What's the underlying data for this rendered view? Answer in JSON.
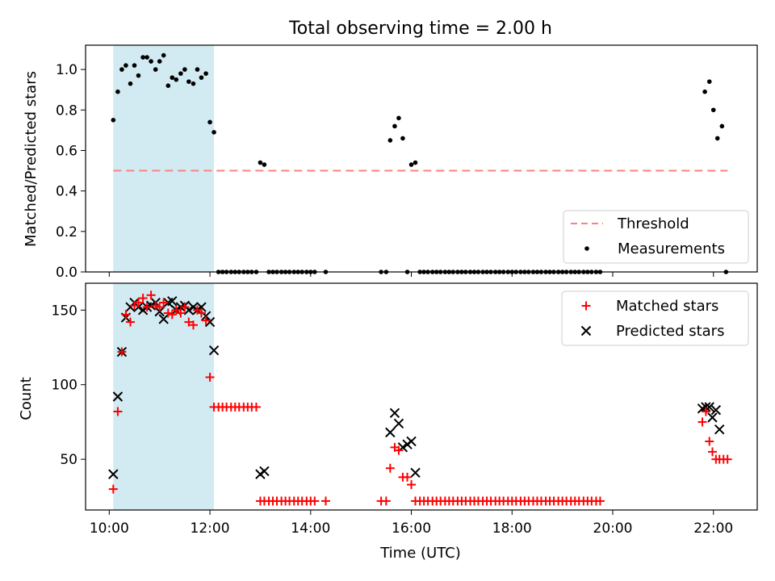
{
  "figure_title": "Total observing time = 2.00 h",
  "x_axis": {
    "label": "Time (UTC)",
    "range_hours": [
      9.53,
      22.87
    ],
    "ticks": [
      10,
      12,
      14,
      16,
      18,
      20,
      22
    ],
    "tick_labels": [
      "10:00",
      "12:00",
      "14:00",
      "16:00",
      "18:00",
      "20:00",
      "22:00"
    ]
  },
  "colors": {
    "threshold": "#ff8080",
    "measurements": "#000000",
    "matched": "#ff0000",
    "predicted": "#000000",
    "observing_window": "#add8e6"
  },
  "chart_data": [
    {
      "type": "scatter",
      "panel": "top",
      "ylabel": "Matched/Predicted stars",
      "ylim": [
        0,
        1.12
      ],
      "yticks": [
        0.0,
        0.2,
        0.4,
        0.6,
        0.8,
        1.0
      ],
      "ytick_labels": [
        "0.0",
        "0.2",
        "0.4",
        "0.6",
        "0.8",
        "1.0"
      ],
      "legend_position": "lower-right",
      "shaded_interval_hours": [
        10.08,
        12.08
      ],
      "series": [
        {
          "name": "Threshold",
          "kind": "line",
          "x": [
            10.08,
            22.28
          ],
          "y": [
            0.5,
            0.5
          ]
        },
        {
          "name": "Measurements",
          "kind": "dots",
          "x": [
            10.08,
            10.17,
            10.25,
            10.33,
            10.42,
            10.5,
            10.58,
            10.67,
            10.75,
            10.83,
            10.92,
            11.0,
            11.08,
            11.17,
            11.25,
            11.33,
            11.42,
            11.5,
            11.58,
            11.67,
            11.75,
            11.83,
            11.92,
            12.0,
            12.08,
            12.17,
            12.25,
            12.33,
            12.42,
            12.5,
            12.58,
            12.67,
            12.75,
            12.83,
            12.92,
            13.0,
            13.08,
            13.17,
            13.25,
            13.33,
            13.42,
            13.5,
            13.58,
            13.67,
            13.75,
            13.83,
            13.92,
            14.0,
            14.08,
            14.3,
            15.4,
            15.5,
            15.58,
            15.67,
            15.75,
            15.83,
            15.92,
            16.0,
            16.08,
            16.17,
            16.25,
            16.33,
            16.42,
            16.5,
            16.58,
            16.67,
            16.75,
            16.83,
            16.92,
            17.0,
            17.08,
            17.17,
            17.25,
            17.33,
            17.42,
            17.5,
            17.58,
            17.67,
            17.75,
            17.83,
            17.92,
            18.0,
            18.08,
            18.17,
            18.25,
            18.33,
            18.42,
            18.5,
            18.58,
            18.67,
            18.75,
            18.83,
            18.92,
            19.0,
            19.08,
            19.17,
            19.25,
            19.33,
            19.42,
            19.5,
            19.58,
            19.67,
            19.75,
            21.83,
            21.92,
            22.0,
            22.08,
            22.17,
            22.25
          ],
          "y": [
            0.75,
            0.89,
            1.0,
            1.02,
            0.93,
            1.02,
            0.97,
            1.06,
            1.06,
            1.04,
            1.0,
            1.04,
            1.07,
            0.92,
            0.96,
            0.95,
            0.98,
            1.0,
            0.94,
            0.93,
            1.0,
            0.96,
            0.98,
            0.74,
            0.69,
            0,
            0,
            0,
            0,
            0,
            0,
            0,
            0,
            0,
            0,
            0.54,
            0.53,
            0,
            0,
            0,
            0,
            0,
            0,
            0,
            0,
            0,
            0,
            0,
            0,
            0,
            0,
            0,
            0.65,
            0.72,
            0.76,
            0.66,
            0,
            0.53,
            0.54,
            0,
            0,
            0,
            0,
            0,
            0,
            0,
            0,
            0,
            0,
            0,
            0,
            0,
            0,
            0,
            0,
            0,
            0,
            0,
            0,
            0,
            0,
            0,
            0,
            0,
            0,
            0,
            0,
            0,
            0,
            0,
            0,
            0,
            0,
            0,
            0,
            0,
            0,
            0,
            0,
            0,
            0,
            0,
            0,
            0.89,
            0.94,
            0.8,
            0.66,
            0.72,
            0
          ]
        }
      ]
    },
    {
      "type": "scatter",
      "panel": "bottom",
      "ylabel": "Count",
      "ylim": [
        16,
        168
      ],
      "yticks": [
        50,
        100,
        150
      ],
      "ytick_labels": [
        "50",
        "100",
        "150"
      ],
      "legend_position": "upper-right",
      "shaded_interval_hours": [
        10.08,
        12.08
      ],
      "series": [
        {
          "name": "Matched stars",
          "kind": "plus",
          "x": [
            10.08,
            10.17,
            10.25,
            10.33,
            10.42,
            10.5,
            10.58,
            10.67,
            10.75,
            10.83,
            10.92,
            11.0,
            11.08,
            11.17,
            11.25,
            11.33,
            11.42,
            11.5,
            11.58,
            11.67,
            11.75,
            11.83,
            11.92,
            12.0,
            12.08,
            12.17,
            12.25,
            12.33,
            12.42,
            12.5,
            12.58,
            12.67,
            12.75,
            12.83,
            12.92,
            13.0,
            13.08,
            13.17,
            13.25,
            13.33,
            13.42,
            13.5,
            13.58,
            13.67,
            13.75,
            13.83,
            13.92,
            14.0,
            14.08,
            14.3,
            15.4,
            15.5,
            15.58,
            15.67,
            15.75,
            15.83,
            15.92,
            16.0,
            16.08,
            16.17,
            16.25,
            16.33,
            16.42,
            16.5,
            16.58,
            16.67,
            16.75,
            16.83,
            16.92,
            17.0,
            17.08,
            17.17,
            17.25,
            17.33,
            17.42,
            17.5,
            17.58,
            17.67,
            17.75,
            17.83,
            17.92,
            18.0,
            18.08,
            18.17,
            18.25,
            18.33,
            18.42,
            18.5,
            18.58,
            18.67,
            18.75,
            18.83,
            18.92,
            19.0,
            19.08,
            19.17,
            19.25,
            19.33,
            19.42,
            19.5,
            19.58,
            19.67,
            19.75,
            21.78,
            21.85,
            21.92,
            21.98,
            22.05,
            22.12,
            22.2,
            22.28
          ],
          "y": [
            30,
            82,
            122,
            147,
            142,
            153,
            155,
            158,
            152,
            160,
            153,
            152,
            155,
            148,
            147,
            150,
            148,
            152,
            142,
            140,
            150,
            148,
            143,
            105,
            85,
            85,
            85,
            85,
            85,
            85,
            85,
            85,
            85,
            85,
            85,
            22,
            22,
            22,
            22,
            22,
            22,
            22,
            22,
            22,
            22,
            22,
            22,
            22,
            22,
            22,
            22,
            22,
            44,
            58,
            56,
            38,
            38,
            33,
            22,
            22,
            22,
            22,
            22,
            22,
            22,
            22,
            22,
            22,
            22,
            22,
            22,
            22,
            22,
            22,
            22,
            22,
            22,
            22,
            22,
            22,
            22,
            22,
            22,
            22,
            22,
            22,
            22,
            22,
            22,
            22,
            22,
            22,
            22,
            22,
            22,
            22,
            22,
            22,
            22,
            22,
            22,
            22,
            22,
            75,
            82,
            62,
            55,
            50,
            50,
            50,
            50
          ]
        },
        {
          "name": "Predicted stars",
          "kind": "x",
          "x": [
            10.08,
            10.17,
            10.25,
            10.33,
            10.42,
            10.5,
            10.58,
            10.67,
            10.75,
            10.83,
            10.92,
            11.0,
            11.08,
            11.17,
            11.25,
            11.33,
            11.42,
            11.5,
            11.58,
            11.67,
            11.75,
            11.83,
            11.92,
            12.0,
            12.08,
            13.0,
            13.08,
            15.58,
            15.67,
            15.75,
            15.83,
            15.92,
            16.0,
            16.08,
            21.78,
            21.85,
            21.92,
            21.98,
            22.05,
            22.12
          ],
          "y": [
            40,
            92,
            122,
            145,
            152,
            155,
            152,
            150,
            152,
            153,
            155,
            149,
            144,
            155,
            156,
            150,
            152,
            153,
            150,
            152,
            150,
            152,
            146,
            142,
            123,
            40,
            42,
            68,
            81,
            74,
            58,
            60,
            62,
            41,
            84,
            85,
            85,
            78,
            83,
            70
          ]
        }
      ]
    }
  ]
}
